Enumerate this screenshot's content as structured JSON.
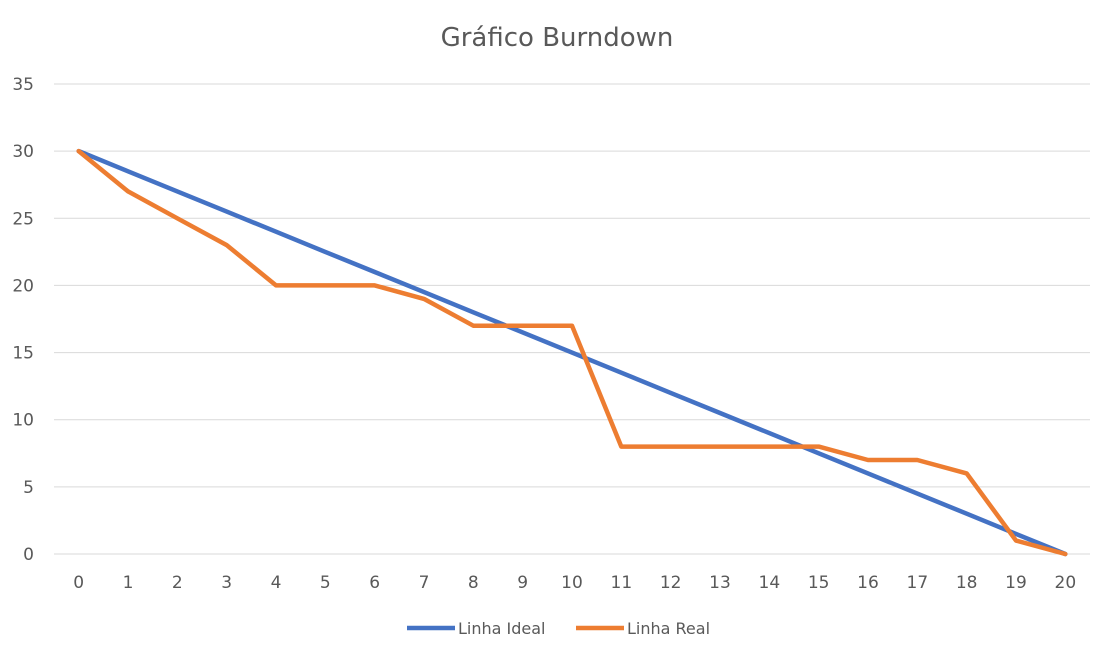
{
  "chart_data": {
    "type": "line",
    "title": "Gráfico Burndown",
    "xlabel": "",
    "ylabel": "",
    "x": [
      0,
      1,
      2,
      3,
      4,
      5,
      6,
      7,
      8,
      9,
      10,
      11,
      12,
      13,
      14,
      15,
      16,
      17,
      18,
      19,
      20
    ],
    "ylim": [
      0,
      35
    ],
    "yticks": [
      0,
      5,
      10,
      15,
      20,
      25,
      30,
      35
    ],
    "grid": "horizontal",
    "legend_position": "bottom",
    "series": [
      {
        "name": "Linha Ideal",
        "color": "#4472C4",
        "values": [
          30,
          28.5,
          27,
          25.5,
          24,
          22.5,
          21,
          19.5,
          18,
          16.5,
          15,
          13.5,
          12,
          10.5,
          9,
          7.5,
          6,
          4.5,
          3,
          1.5,
          0
        ]
      },
      {
        "name": "Linha Real",
        "color": "#ED7D31",
        "values": [
          30,
          27,
          25,
          23,
          20,
          20,
          20,
          19,
          17,
          17,
          17,
          8,
          8,
          8,
          8,
          8,
          7,
          7,
          6,
          1,
          0
        ]
      }
    ]
  }
}
